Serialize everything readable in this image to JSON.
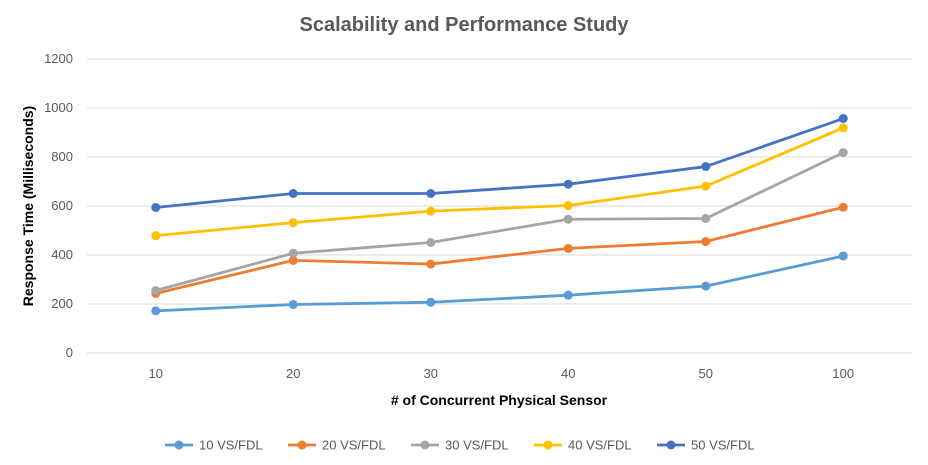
{
  "chart_data": {
    "type": "line",
    "title": "Scalability and Performance Study",
    "xlabel": "# of Concurrent  Physical Sensor",
    "ylabel": "Response Time (Milliseconds)",
    "categories": [
      "10",
      "20",
      "30",
      "40",
      "50",
      "100"
    ],
    "ylim": [
      0,
      1200
    ],
    "yticks": [
      0,
      200,
      400,
      600,
      800,
      1000,
      1200
    ],
    "grid": true,
    "legend_position": "bottom",
    "series": [
      {
        "name": "10 VS/FDL",
        "color": "#5b9bd5",
        "values": [
          172,
          198,
          207,
          236,
          273,
          396
        ]
      },
      {
        "name": "20 VS/FDL",
        "color": "#ed7d31",
        "values": [
          243,
          378,
          363,
          427,
          455,
          595
        ]
      },
      {
        "name": "30 VS/FDL",
        "color": "#a5a5a5",
        "values": [
          255,
          407,
          451,
          546,
          549,
          818
        ]
      },
      {
        "name": "40 VS/FDL",
        "color": "#ffc000",
        "values": [
          479,
          532,
          579,
          602,
          681,
          919
        ]
      },
      {
        "name": "50 VS/FDL",
        "color": "#4472c4",
        "values": [
          594,
          651,
          651,
          689,
          761,
          957
        ]
      }
    ]
  }
}
